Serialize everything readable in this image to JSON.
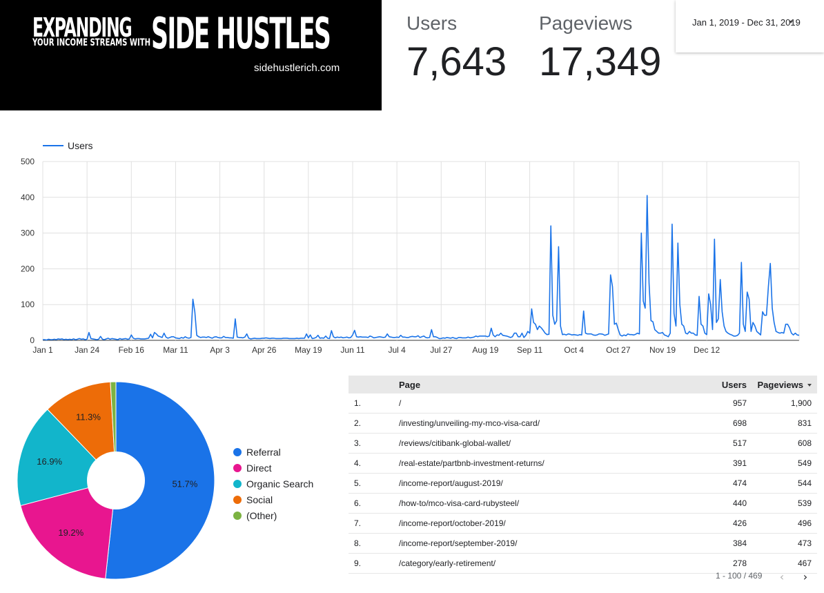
{
  "logo": {
    "word1": "EXPANDING",
    "tagline": "YOUR INCOME STREAMS WITH",
    "word2": "SIDE HUSTLES",
    "url": "sidehustlerich.com"
  },
  "scorecards": {
    "users": {
      "label": "Users",
      "value": "7,643"
    },
    "pageviews": {
      "label": "Pageviews",
      "value": "17,349"
    }
  },
  "date_range": {
    "value": "Jan 1, 2019 - Dec 31, 2019",
    "icon": "chevron-down-icon"
  },
  "colors": {
    "line": "#1a73e8",
    "referral": "#1a73e8",
    "direct": "#e8168f",
    "organic_search": "#12b5cb",
    "social": "#ed6c08",
    "other": "#7cb342"
  },
  "chart_data": [
    {
      "type": "line",
      "legend": [
        "Users"
      ],
      "series": [
        {
          "name": "Users",
          "values": [
            2,
            2,
            1,
            3,
            2,
            2,
            3,
            2,
            4,
            3,
            4,
            2,
            3,
            2,
            3,
            2,
            4,
            2,
            3,
            5,
            3,
            4,
            2,
            3,
            22,
            5,
            4,
            3,
            2,
            3,
            11,
            3,
            2,
            4,
            6,
            3,
            5,
            4,
            3,
            2,
            5,
            3,
            4,
            5,
            3,
            4,
            15,
            6,
            4,
            5,
            5,
            4,
            4,
            4,
            5,
            6,
            17,
            7,
            22,
            18,
            12,
            10,
            8,
            20,
            9,
            6,
            8,
            10,
            10,
            7,
            6,
            5,
            8,
            6,
            10,
            7,
            6,
            8,
            115,
            80,
            14,
            10,
            8,
            9,
            9,
            8,
            10,
            8,
            6,
            9,
            10,
            8,
            7,
            7,
            11,
            8,
            8,
            7,
            7,
            6,
            60,
            9,
            8,
            8,
            7,
            9,
            18,
            6,
            4,
            5,
            6,
            5,
            5,
            5,
            6,
            6,
            7,
            6,
            5,
            6,
            6,
            5,
            5,
            5,
            5,
            6,
            6,
            6,
            5,
            5,
            5,
            5,
            6,
            5,
            6,
            6,
            6,
            18,
            7,
            15,
            5,
            6,
            8,
            14,
            6,
            7,
            6,
            12,
            6,
            5,
            27,
            10,
            7,
            9,
            8,
            9,
            7,
            8,
            9,
            7,
            8,
            15,
            28,
            10,
            9,
            10,
            9,
            9,
            9,
            8,
            12,
            10,
            7,
            8,
            9,
            10,
            9,
            8,
            9,
            18,
            10,
            9,
            8,
            8,
            9,
            8,
            14,
            9,
            9,
            8,
            8,
            10,
            11,
            10,
            10,
            13,
            8,
            10,
            12,
            8,
            7,
            8,
            30,
            10,
            10,
            8,
            5,
            5,
            7,
            6,
            8,
            7,
            6,
            8,
            6,
            5,
            8,
            8,
            7,
            7,
            7,
            9,
            7,
            8,
            9,
            12,
            10,
            12,
            12,
            12,
            12,
            10,
            12,
            34,
            15,
            10,
            15,
            14,
            20,
            14,
            13,
            12,
            10,
            8,
            10,
            20,
            20,
            10,
            10,
            20,
            8,
            14,
            25,
            20,
            88,
            50,
            45,
            30,
            40,
            35,
            28,
            20,
            16,
            17,
            320,
            70,
            45,
            55,
            262,
            40,
            16,
            17,
            15,
            18,
            17,
            15,
            16,
            15,
            14,
            16,
            15,
            82,
            20,
            18,
            18,
            18,
            15,
            14,
            15,
            18,
            18,
            17,
            14,
            16,
            18,
            183,
            150,
            45,
            48,
            30,
            15,
            12,
            15,
            13,
            18,
            16,
            16,
            15,
            17,
            20,
            18,
            300,
            110,
            90,
            405,
            160,
            55,
            52,
            30,
            25,
            20,
            20,
            22,
            15,
            13,
            10,
            20,
            325,
            75,
            40,
            272,
            100,
            45,
            40,
            20,
            18,
            25,
            20,
            20,
            15,
            14,
            123,
            45,
            40,
            20,
            16,
            130,
            100,
            30,
            283,
            50,
            60,
            170,
            80,
            40,
            25,
            20,
            17,
            15,
            12,
            12,
            14,
            20,
            218,
            45,
            25,
            135,
            115,
            25,
            50,
            40,
            25,
            20,
            15,
            80,
            70,
            70,
            150,
            215,
            90,
            50,
            25,
            22,
            20,
            22,
            20,
            45,
            45,
            35,
            20,
            15,
            20,
            15,
            14
          ]
        }
      ],
      "x_tick_labels": [
        "Jan 1",
        "Jan 24",
        "Feb 16",
        "Mar 11",
        "Apr 3",
        "Apr 26",
        "May 19",
        "Jun 11",
        "Jul 4",
        "Jul 27",
        "Aug 19",
        "Sep 11",
        "Oct 4",
        "Oct 27",
        "Nov 19",
        "Dec 12"
      ],
      "y_tick_labels": [
        "0",
        "100",
        "200",
        "300",
        "400",
        "500"
      ],
      "ylim": [
        0,
        500
      ],
      "grid": true,
      "legend_position": "top-left"
    },
    {
      "type": "pie",
      "donut": true,
      "categories": [
        "Referral",
        "Direct",
        "Organic Search",
        "Social",
        "(Other)"
      ],
      "values": [
        51.7,
        19.2,
        16.9,
        11.3,
        0.9
      ],
      "data_labels": [
        "51.7%",
        "19.2%",
        "16.9%",
        "11.3%",
        ""
      ],
      "legend_position": "right"
    }
  ],
  "table": {
    "headers": {
      "page": "Page",
      "users": "Users",
      "pageviews": "Pageviews"
    },
    "sort_icon": "sort-desc-icon",
    "rows": [
      {
        "num": "1.",
        "page": "/",
        "users": "957",
        "pageviews": "1,900"
      },
      {
        "num": "2.",
        "page": "/investing/unveiling-my-mco-visa-card/",
        "users": "698",
        "pageviews": "831"
      },
      {
        "num": "3.",
        "page": "/reviews/citibank-global-wallet/",
        "users": "517",
        "pageviews": "608"
      },
      {
        "num": "4.",
        "page": "/real-estate/partbnb-investment-returns/",
        "users": "391",
        "pageviews": "549"
      },
      {
        "num": "5.",
        "page": "/income-report/august-2019/",
        "users": "474",
        "pageviews": "544"
      },
      {
        "num": "6.",
        "page": "/how-to/mco-visa-card-rubysteel/",
        "users": "440",
        "pageviews": "539"
      },
      {
        "num": "7.",
        "page": "/income-report/october-2019/",
        "users": "426",
        "pageviews": "496"
      },
      {
        "num": "8.",
        "page": "/income-report/september-2019/",
        "users": "384",
        "pageviews": "473"
      },
      {
        "num": "9.",
        "page": "/category/early-retirement/",
        "users": "278",
        "pageviews": "467"
      }
    ],
    "pagination": {
      "range": "1 - 100 / 469",
      "prev_icon": "chevron-left-icon",
      "next_icon": "chevron-right-icon"
    }
  }
}
